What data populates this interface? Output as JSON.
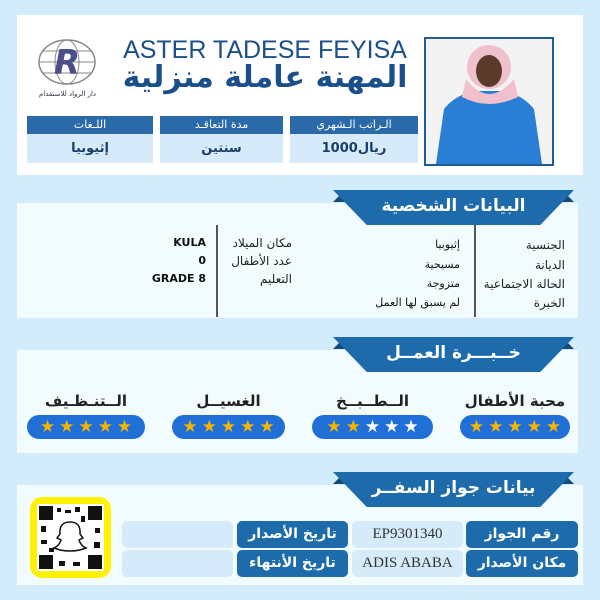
{
  "header": {
    "name": "ASTER TADESE FEYISA",
    "job_title": "المهنة عاملة منزلية",
    "logo_text": "دار الرواد للاستقدام",
    "info": [
      {
        "label": "الـراتب الـشهري",
        "value": "1000ريال"
      },
      {
        "label": "مدة التعاقـد",
        "value": "سنتين"
      },
      {
        "label": "اللـغات",
        "value": "إثيوبيا"
      }
    ]
  },
  "personal": {
    "title": "البيانات الشخصية",
    "right": [
      {
        "label": "الجنسية",
        "value": "إثيوبيا"
      },
      {
        "label": "الديانة",
        "value": "مسيحية"
      },
      {
        "label": "الحالة الاجتماعية",
        "value": "متزوجة"
      },
      {
        "label": "الخبرة",
        "value": "لم يسبق لها العمل"
      }
    ],
    "left": [
      {
        "label": "مكان الميلاد",
        "value": "KULA"
      },
      {
        "label": "عدد الأطفال",
        "value": "0"
      },
      {
        "label": "التعليم",
        "value": "GRADE 8"
      }
    ]
  },
  "experience": {
    "title": "خــبـــرة العمــل",
    "skills": [
      {
        "label": "محبة الأطفال",
        "rating": 5
      },
      {
        "label": "الــطــبــخ",
        "rating": 2
      },
      {
        "label": "الغسيــل",
        "rating": 5
      },
      {
        "label": "الــتنـظـيف",
        "rating": 5
      }
    ],
    "max_rating": 5
  },
  "passport": {
    "title": "بيانات جواز السفــر",
    "number_label": "رقم الجواز",
    "number": "EP9301340",
    "place_label": "مكان الأصدار",
    "place": "ADIS ABABA",
    "issue_label": "تاريخ الأصدار",
    "issue": "",
    "expiry_label": "تاريخ الأنتهاء",
    "expiry": ""
  },
  "colors": {
    "primary": "#1e6bab",
    "background": "#d2ecfb",
    "star": "#f7b500",
    "qr_frame": "#fff200"
  }
}
